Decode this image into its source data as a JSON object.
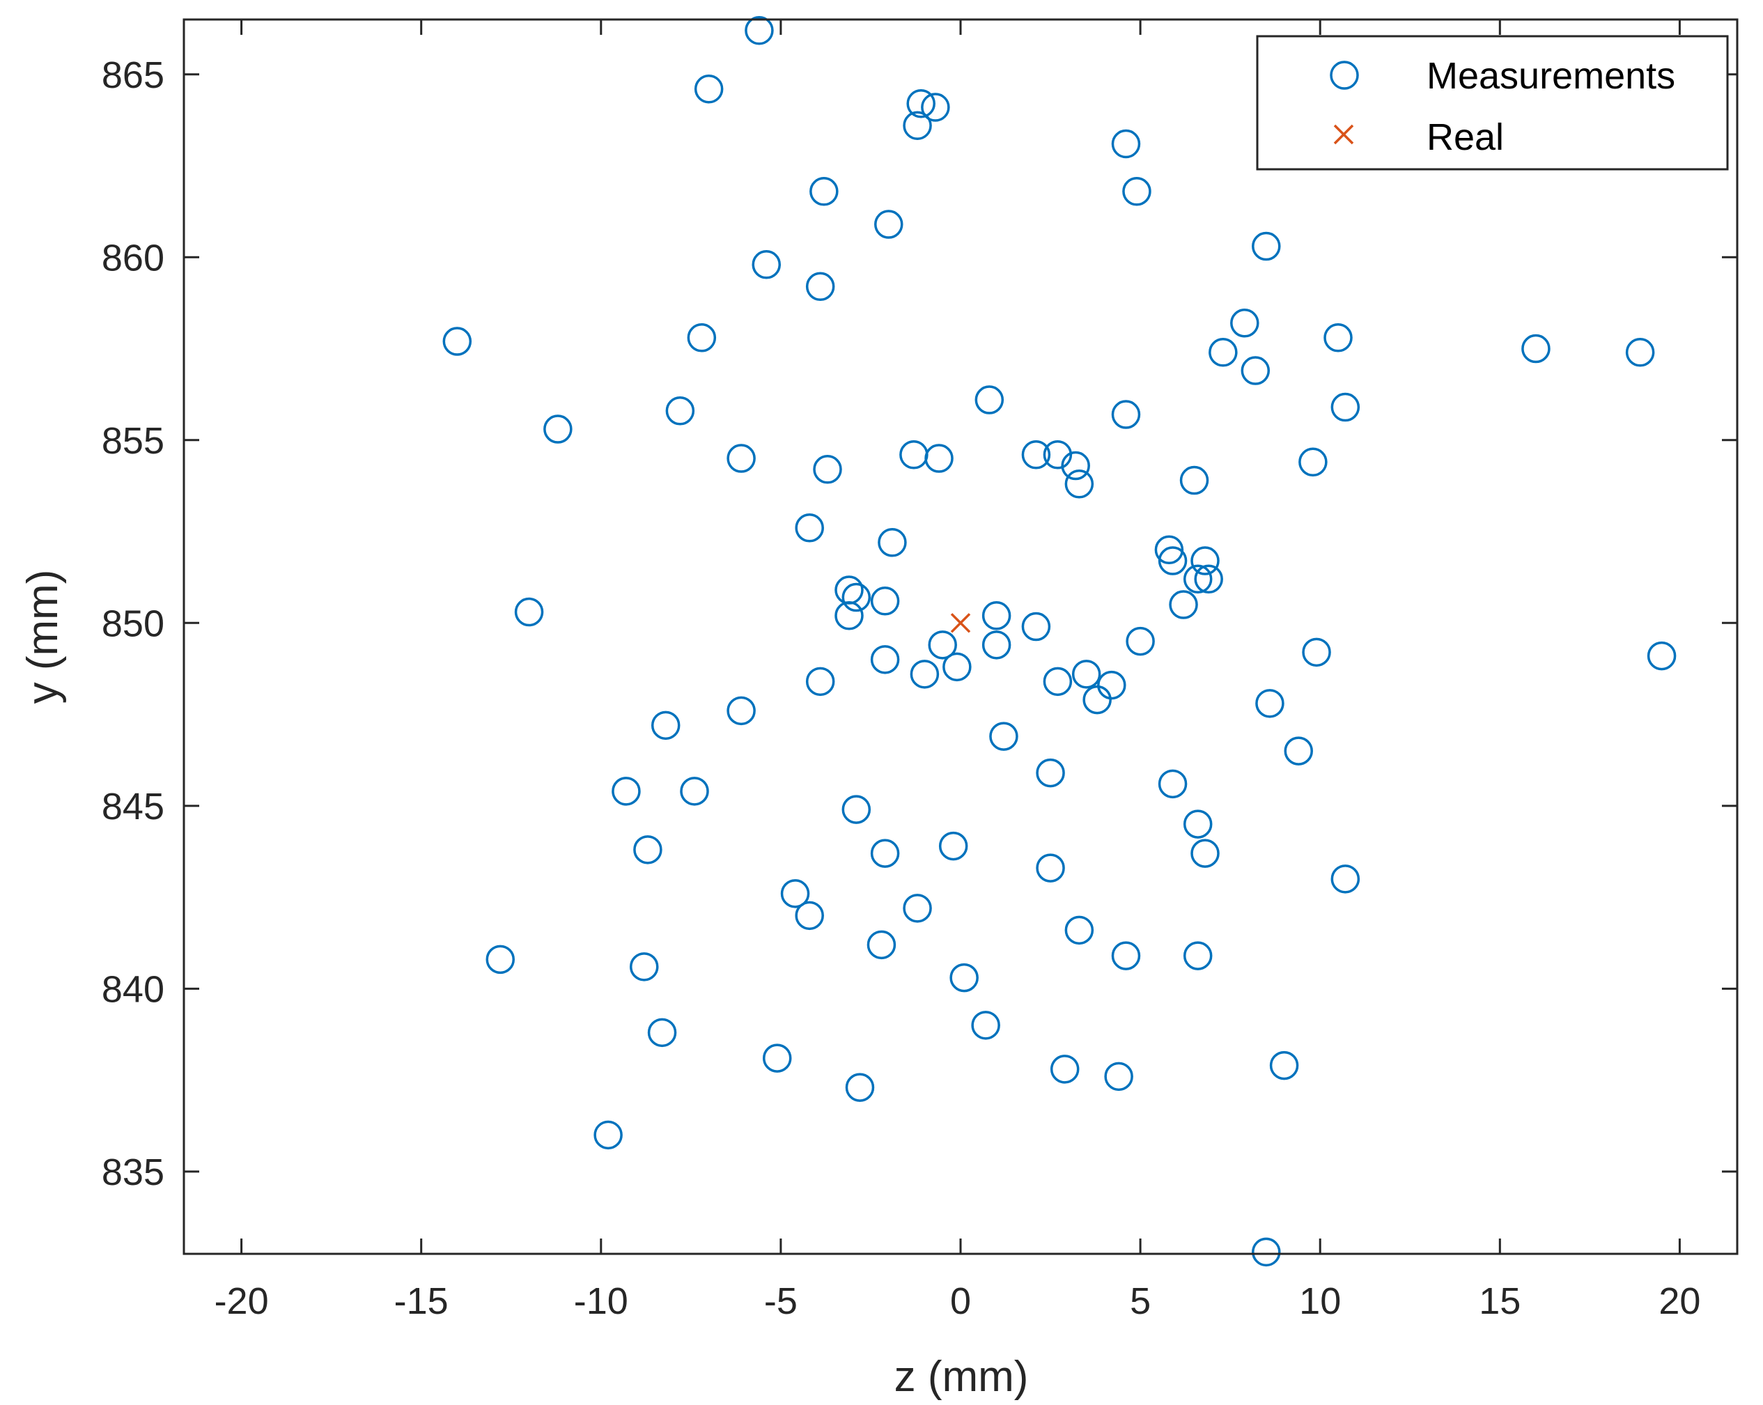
{
  "chart_data": {
    "type": "scatter",
    "title": "",
    "xlabel": "z (mm)",
    "ylabel": "y (mm)",
    "xlim": [
      -21.6,
      21.6
    ],
    "ylim": [
      832.75,
      866.5
    ],
    "xticks": [
      -20,
      -15,
      -10,
      -5,
      0,
      5,
      10,
      15,
      20
    ],
    "yticks": [
      835,
      840,
      845,
      850,
      855,
      860,
      865
    ],
    "grid": false,
    "legend_position": "top-right",
    "series": [
      {
        "name": "Measurements",
        "marker": "circle",
        "color": "#0072BD",
        "points": [
          [
            -5.6,
            866.2
          ],
          [
            -7.0,
            864.6
          ],
          [
            -1.1,
            864.2
          ],
          [
            -0.7,
            864.1
          ],
          [
            -1.2,
            863.6
          ],
          [
            4.6,
            863.1
          ],
          [
            -3.8,
            861.8
          ],
          [
            4.9,
            861.8
          ],
          [
            -2.0,
            860.9
          ],
          [
            8.5,
            860.3
          ],
          [
            -5.4,
            859.8
          ],
          [
            -3.9,
            859.2
          ],
          [
            -14.0,
            857.7
          ],
          [
            -7.2,
            857.8
          ],
          [
            7.9,
            858.2
          ],
          [
            10.5,
            857.8
          ],
          [
            7.3,
            857.4
          ],
          [
            8.2,
            856.9
          ],
          [
            16.0,
            857.5
          ],
          [
            18.9,
            857.4
          ],
          [
            0.8,
            856.1
          ],
          [
            -7.8,
            855.8
          ],
          [
            4.6,
            855.7
          ],
          [
            10.7,
            855.9
          ],
          [
            -11.2,
            855.3
          ],
          [
            -6.1,
            854.5
          ],
          [
            -1.3,
            854.6
          ],
          [
            -0.6,
            854.5
          ],
          [
            2.1,
            854.6
          ],
          [
            2.7,
            854.6
          ],
          [
            3.2,
            854.3
          ],
          [
            3.3,
            853.8
          ],
          [
            -3.7,
            854.2
          ],
          [
            9.8,
            854.4
          ],
          [
            6.5,
            853.9
          ],
          [
            -4.2,
            852.6
          ],
          [
            -1.9,
            852.2
          ],
          [
            5.8,
            852.0
          ],
          [
            5.9,
            851.7
          ],
          [
            6.8,
            851.7
          ],
          [
            6.6,
            851.2
          ],
          [
            6.9,
            851.2
          ],
          [
            -3.1,
            850.9
          ],
          [
            -2.9,
            850.7
          ],
          [
            -2.1,
            850.6
          ],
          [
            6.2,
            850.5
          ],
          [
            -12.0,
            850.3
          ],
          [
            -3.1,
            850.2
          ],
          [
            1.0,
            850.2
          ],
          [
            2.1,
            849.9
          ],
          [
            5.0,
            849.5
          ],
          [
            -0.5,
            849.4
          ],
          [
            1.0,
            849.4
          ],
          [
            9.9,
            849.2
          ],
          [
            19.5,
            849.1
          ],
          [
            -2.1,
            849.0
          ],
          [
            -0.1,
            848.8
          ],
          [
            -1.0,
            848.6
          ],
          [
            2.7,
            848.4
          ],
          [
            3.5,
            848.6
          ],
          [
            4.2,
            848.3
          ],
          [
            3.8,
            847.9
          ],
          [
            -3.9,
            848.4
          ],
          [
            8.6,
            847.8
          ],
          [
            -6.1,
            847.6
          ],
          [
            -8.2,
            847.2
          ],
          [
            1.2,
            846.9
          ],
          [
            9.4,
            846.5
          ],
          [
            2.5,
            845.9
          ],
          [
            5.9,
            845.6
          ],
          [
            -9.3,
            845.4
          ],
          [
            -7.4,
            845.4
          ],
          [
            -2.9,
            844.9
          ],
          [
            6.6,
            844.5
          ],
          [
            6.8,
            843.7
          ],
          [
            -8.7,
            843.8
          ],
          [
            -2.1,
            843.7
          ],
          [
            -0.2,
            843.9
          ],
          [
            2.5,
            843.3
          ],
          [
            10.7,
            843.0
          ],
          [
            -4.6,
            842.6
          ],
          [
            -4.2,
            842.0
          ],
          [
            -1.2,
            842.2
          ],
          [
            -2.2,
            841.2
          ],
          [
            3.3,
            841.6
          ],
          [
            -12.8,
            840.8
          ],
          [
            -8.8,
            840.6
          ],
          [
            4.6,
            840.9
          ],
          [
            6.6,
            840.9
          ],
          [
            0.1,
            840.3
          ],
          [
            -8.3,
            838.8
          ],
          [
            0.7,
            839.0
          ],
          [
            -5.1,
            838.1
          ],
          [
            2.9,
            837.8
          ],
          [
            4.4,
            837.6
          ],
          [
            9.0,
            837.9
          ],
          [
            -2.8,
            837.3
          ],
          [
            -9.8,
            836.0
          ],
          [
            8.5,
            832.8
          ]
        ]
      },
      {
        "name": "Real",
        "marker": "x",
        "color": "#D95319",
        "points": [
          [
            0,
            850
          ]
        ]
      }
    ]
  }
}
